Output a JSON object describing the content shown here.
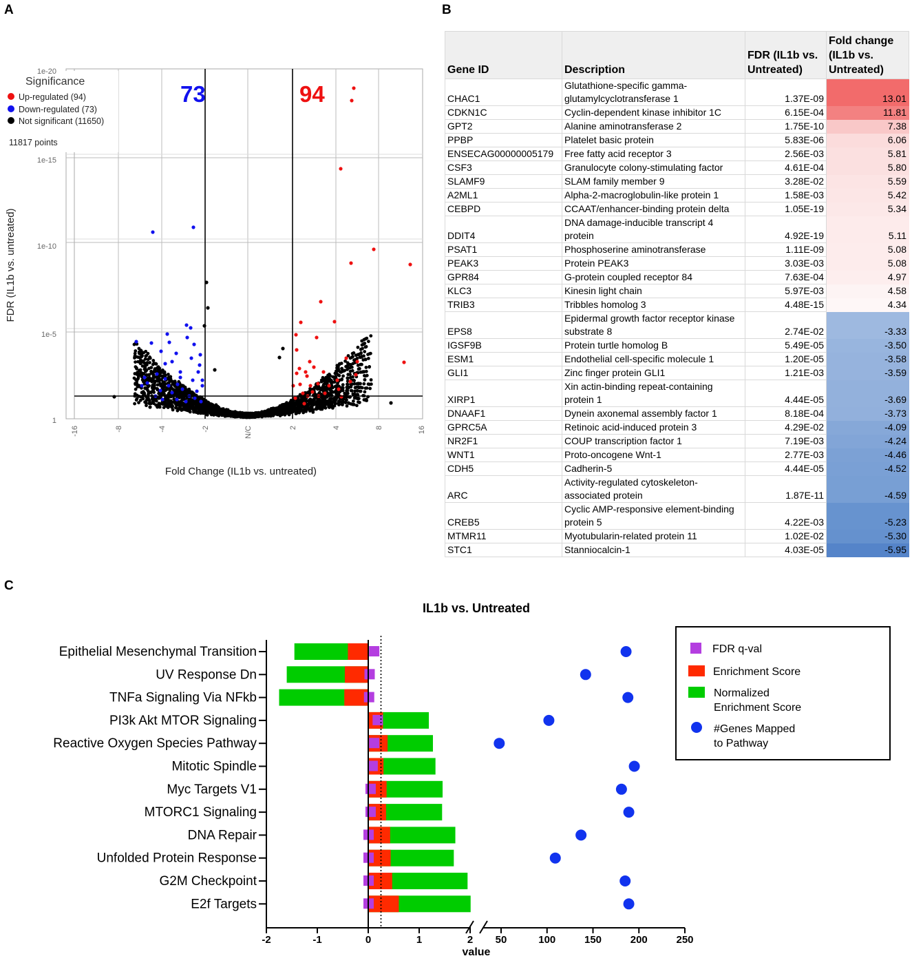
{
  "panels": {
    "a": "A",
    "b": "B",
    "c": "C"
  },
  "panel_a": {
    "legend_title": "Significance",
    "legend_items": [
      {
        "label": "Up-regulated (94)",
        "color": "#ee1111"
      },
      {
        "label": "Down-regulated (73)",
        "color": "#1111ee"
      },
      {
        "label": "Not significant (11650)",
        "color": "#000000"
      }
    ],
    "points_label": "11817 points",
    "down_count": "73",
    "up_count": "94",
    "y_ticks": [
      "1e-20",
      "1e-15",
      "1e-10",
      "1e-5",
      "1"
    ],
    "x_ticks": [
      "-16",
      "-8",
      "-4",
      "-2",
      "N/C",
      "2",
      "4",
      "8",
      "16"
    ],
    "xlabel": "Fold Change (IL1b vs. untreated)",
    "ylabel": "FDR (IL1b vs. untreated)",
    "colors": {
      "up": "#ee1111",
      "down": "#1111ee",
      "ns": "#000000"
    }
  },
  "panel_b": {
    "headers": {
      "gene": "Gene ID",
      "desc": "Description",
      "fdr_1": "FDR (IL1b vs.",
      "fdr_2": "Untreated)",
      "fc_1": "Fold change",
      "fc_2": "(IL1b vs.",
      "fc_3": "Untreated)"
    },
    "rows": [
      {
        "gene": "CHAC1",
        "desc1": "Glutathione-specific gamma-",
        "desc2": "glutamylcyclotransferase 1",
        "fdr": "1.37E-09",
        "fc": "13.01",
        "bg": "#f26b6b"
      },
      {
        "gene": "CDKN1C",
        "desc1": "Cyclin-dependent kinase inhibitor 1C",
        "desc2": "",
        "fdr": "6.15E-04",
        "fc": "11.81",
        "bg": "#f38181"
      },
      {
        "gene": "GPT2",
        "desc1": "Alanine aminotransferase 2",
        "desc2": "",
        "fdr": "1.75E-10",
        "fc": "7.38",
        "bg": "#f9c8c8"
      },
      {
        "gene": "PPBP",
        "desc1": "Platelet basic protein",
        "desc2": "",
        "fdr": "5.83E-06",
        "fc": "6.06",
        "bg": "#fbdcdc"
      },
      {
        "gene": "ENSECAG00000005179",
        "desc1": "Free fatty acid receptor 3",
        "desc2": "",
        "fdr": "2.56E-03",
        "fc": "5.81",
        "bg": "#fbe0e0"
      },
      {
        "gene": "CSF3",
        "desc1": "Granulocyte colony-stimulating factor",
        "desc2": "",
        "fdr": "4.61E-04",
        "fc": "5.80",
        "bg": "#fbe0e0"
      },
      {
        "gene": "SLAMF9",
        "desc1": "SLAM family member 9",
        "desc2": "",
        "fdr": "3.28E-02",
        "fc": "5.59",
        "bg": "#fce4e4"
      },
      {
        "gene": "A2ML1",
        "desc1": "Alpha-2-macroglobulin-like protein 1",
        "desc2": "",
        "fdr": "1.58E-03",
        "fc": "5.42",
        "bg": "#fce6e6"
      },
      {
        "gene": "CEBPD",
        "desc1": "CCAAT/enhancer-binding protein delta",
        "desc2": "",
        "fdr": "1.05E-19",
        "fc": "5.34",
        "bg": "#fce8e8"
      },
      {
        "gene": "DDIT4",
        "desc1": "DNA damage-inducible transcript 4",
        "desc2": "protein",
        "fdr": "4.92E-19",
        "fc": "5.11",
        "bg": "#fdebeb"
      },
      {
        "gene": "PSAT1",
        "desc1": "Phosphoserine aminotransferase",
        "desc2": "",
        "fdr": "1.11E-09",
        "fc": "5.08",
        "bg": "#fdecec"
      },
      {
        "gene": "PEAK3",
        "desc1": "Protein PEAK3",
        "desc2": "",
        "fdr": "3.03E-03",
        "fc": "5.08",
        "bg": "#fdecec"
      },
      {
        "gene": "GPR84",
        "desc1": "G-protein coupled receptor 84",
        "desc2": "",
        "fdr": "7.63E-04",
        "fc": "4.97",
        "bg": "#fdeeee"
      },
      {
        "gene": "KLC3",
        "desc1": "Kinesin light chain",
        "desc2": "",
        "fdr": "5.97E-03",
        "fc": "4.58",
        "bg": "#fdf4f4"
      },
      {
        "gene": "TRIB3",
        "desc1": "Tribbles homolog 3",
        "desc2": "",
        "fdr": "4.48E-15",
        "fc": "4.34",
        "bg": "#fef7f7"
      },
      {
        "gene": "EPS8",
        "desc1": "Epidermal growth factor receptor kinase",
        "desc2": "substrate 8",
        "fdr": "2.74E-02",
        "fc": "-3.33",
        "bg": "#9eb9e0"
      },
      {
        "gene": "IGSF9B",
        "desc1": "Protein turtle homolog B",
        "desc2": "",
        "fdr": "5.49E-05",
        "fc": "-3.50",
        "bg": "#98b5de"
      },
      {
        "gene": "ESM1",
        "desc1": "Endothelial cell-specific molecule 1",
        "desc2": "",
        "fdr": "1.20E-05",
        "fc": "-3.58",
        "bg": "#96b3dd"
      },
      {
        "gene": "GLI1",
        "desc1": "Zinc finger protein GLI1",
        "desc2": "",
        "fdr": "1.21E-03",
        "fc": "-3.59",
        "bg": "#96b3dd"
      },
      {
        "gene": "XIRP1",
        "desc1": "Xin actin-binding repeat-containing",
        "desc2": "protein 1",
        "fdr": "4.44E-05",
        "fc": "-3.69",
        "bg": "#93b1dc"
      },
      {
        "gene": "DNAAF1",
        "desc1": "Dynein axonemal assembly factor 1",
        "desc2": "",
        "fdr": "8.18E-04",
        "fc": "-3.73",
        "bg": "#92b0dc"
      },
      {
        "gene": "GPRC5A",
        "desc1": "Retinoic acid-induced protein 3",
        "desc2": "",
        "fdr": "4.29E-02",
        "fc": "-4.09",
        "bg": "#86a8d8"
      },
      {
        "gene": "NR2F1",
        "desc1": "COUP transcription factor 1",
        "desc2": "",
        "fdr": "7.19E-03",
        "fc": "-4.24",
        "bg": "#82a5d7"
      },
      {
        "gene": "WNT1",
        "desc1": "Proto-oncogene Wnt-1",
        "desc2": "",
        "fdr": "2.77E-03",
        "fc": "-4.46",
        "bg": "#7ca1d5"
      },
      {
        "gene": "CDH5",
        "desc1": "Cadherin-5",
        "desc2": "",
        "fdr": "4.44E-05",
        "fc": "-4.52",
        "bg": "#7aa0d5"
      },
      {
        "gene": "ARC",
        "desc1": "Activity-regulated cytoskeleton-",
        "desc2": "associated protein",
        "fdr": "1.87E-11",
        "fc": "-4.59",
        "bg": "#789fd4"
      },
      {
        "gene": "CREB5",
        "desc1": "Cyclic AMP-responsive element-binding",
        "desc2": "protein 5",
        "fdr": "4.22E-03",
        "fc": "-5.23",
        "bg": "#6793cf"
      },
      {
        "gene": "MTMR11",
        "desc1": "Myotubularin-related protein 11",
        "desc2": "",
        "fdr": "1.02E-02",
        "fc": "-5.30",
        "bg": "#6591ce"
      },
      {
        "gene": "STC1",
        "desc1": "Stanniocalcin-1",
        "desc2": "",
        "fdr": "4.03E-05",
        "fc": "-5.95",
        "bg": "#5584c9"
      }
    ]
  },
  "chart_data": {
    "type": "bar",
    "title": "IL1b vs. Untreated",
    "xlabel": "value",
    "xlim_left": [
      -2,
      2
    ],
    "xlim_right": [
      25,
      250
    ],
    "x_ticks_left": [
      "-2",
      "-1",
      "0",
      "1",
      "2"
    ],
    "x_ticks_right": [
      "50",
      "100",
      "150",
      "200",
      "250"
    ],
    "reference_line_x": 0.25,
    "categories": [
      "Epithelial Mesenchymal Transition",
      "UV Response Dn",
      "TNFa Signaling Via NFkb",
      "PI3k Akt MTOR Signaling",
      "Reactive Oxygen Species Pathway",
      "Mitotic Spindle",
      "Myc Targets V1",
      "MTORC1 Signaling",
      "DNA Repair",
      "Unfolded Protein Response",
      "G2M Checkpoint",
      "E2f Targets"
    ],
    "series": [
      {
        "name": "FDR q-val",
        "color": "#b43ee0",
        "values": [
          0.11,
          0.02,
          0.01,
          0.18,
          0.11,
          0.08,
          0.04,
          0.04,
          0.0,
          0.0,
          0.0,
          0.0
        ]
      },
      {
        "name": "Enrichment Score",
        "color": "#ff2a00",
        "values": [
          -0.4,
          -0.46,
          -0.47,
          0.29,
          0.38,
          0.3,
          0.36,
          0.35,
          0.43,
          0.44,
          0.47,
          0.6
        ]
      },
      {
        "name": "Normalized Enrichment Score",
        "color": "#00cc00",
        "values": [
          -1.45,
          -1.6,
          -1.75,
          1.19,
          1.27,
          1.32,
          1.46,
          1.45,
          1.71,
          1.68,
          1.95,
          2.01
        ]
      },
      {
        "name": "#Genes Mapped to Pathway",
        "color": "#1133ee",
        "values": [
          186,
          142,
          188,
          102,
          48,
          195,
          181,
          189,
          137,
          109,
          185,
          189
        ]
      }
    ],
    "legend": {
      "fdr": "FDR q-val",
      "es": "Enrichment Score",
      "nes_1": "Normalized",
      "nes_2": "Enrichment Score",
      "genes_1": "#Genes Mapped",
      "genes_2": "to Pathway"
    }
  }
}
